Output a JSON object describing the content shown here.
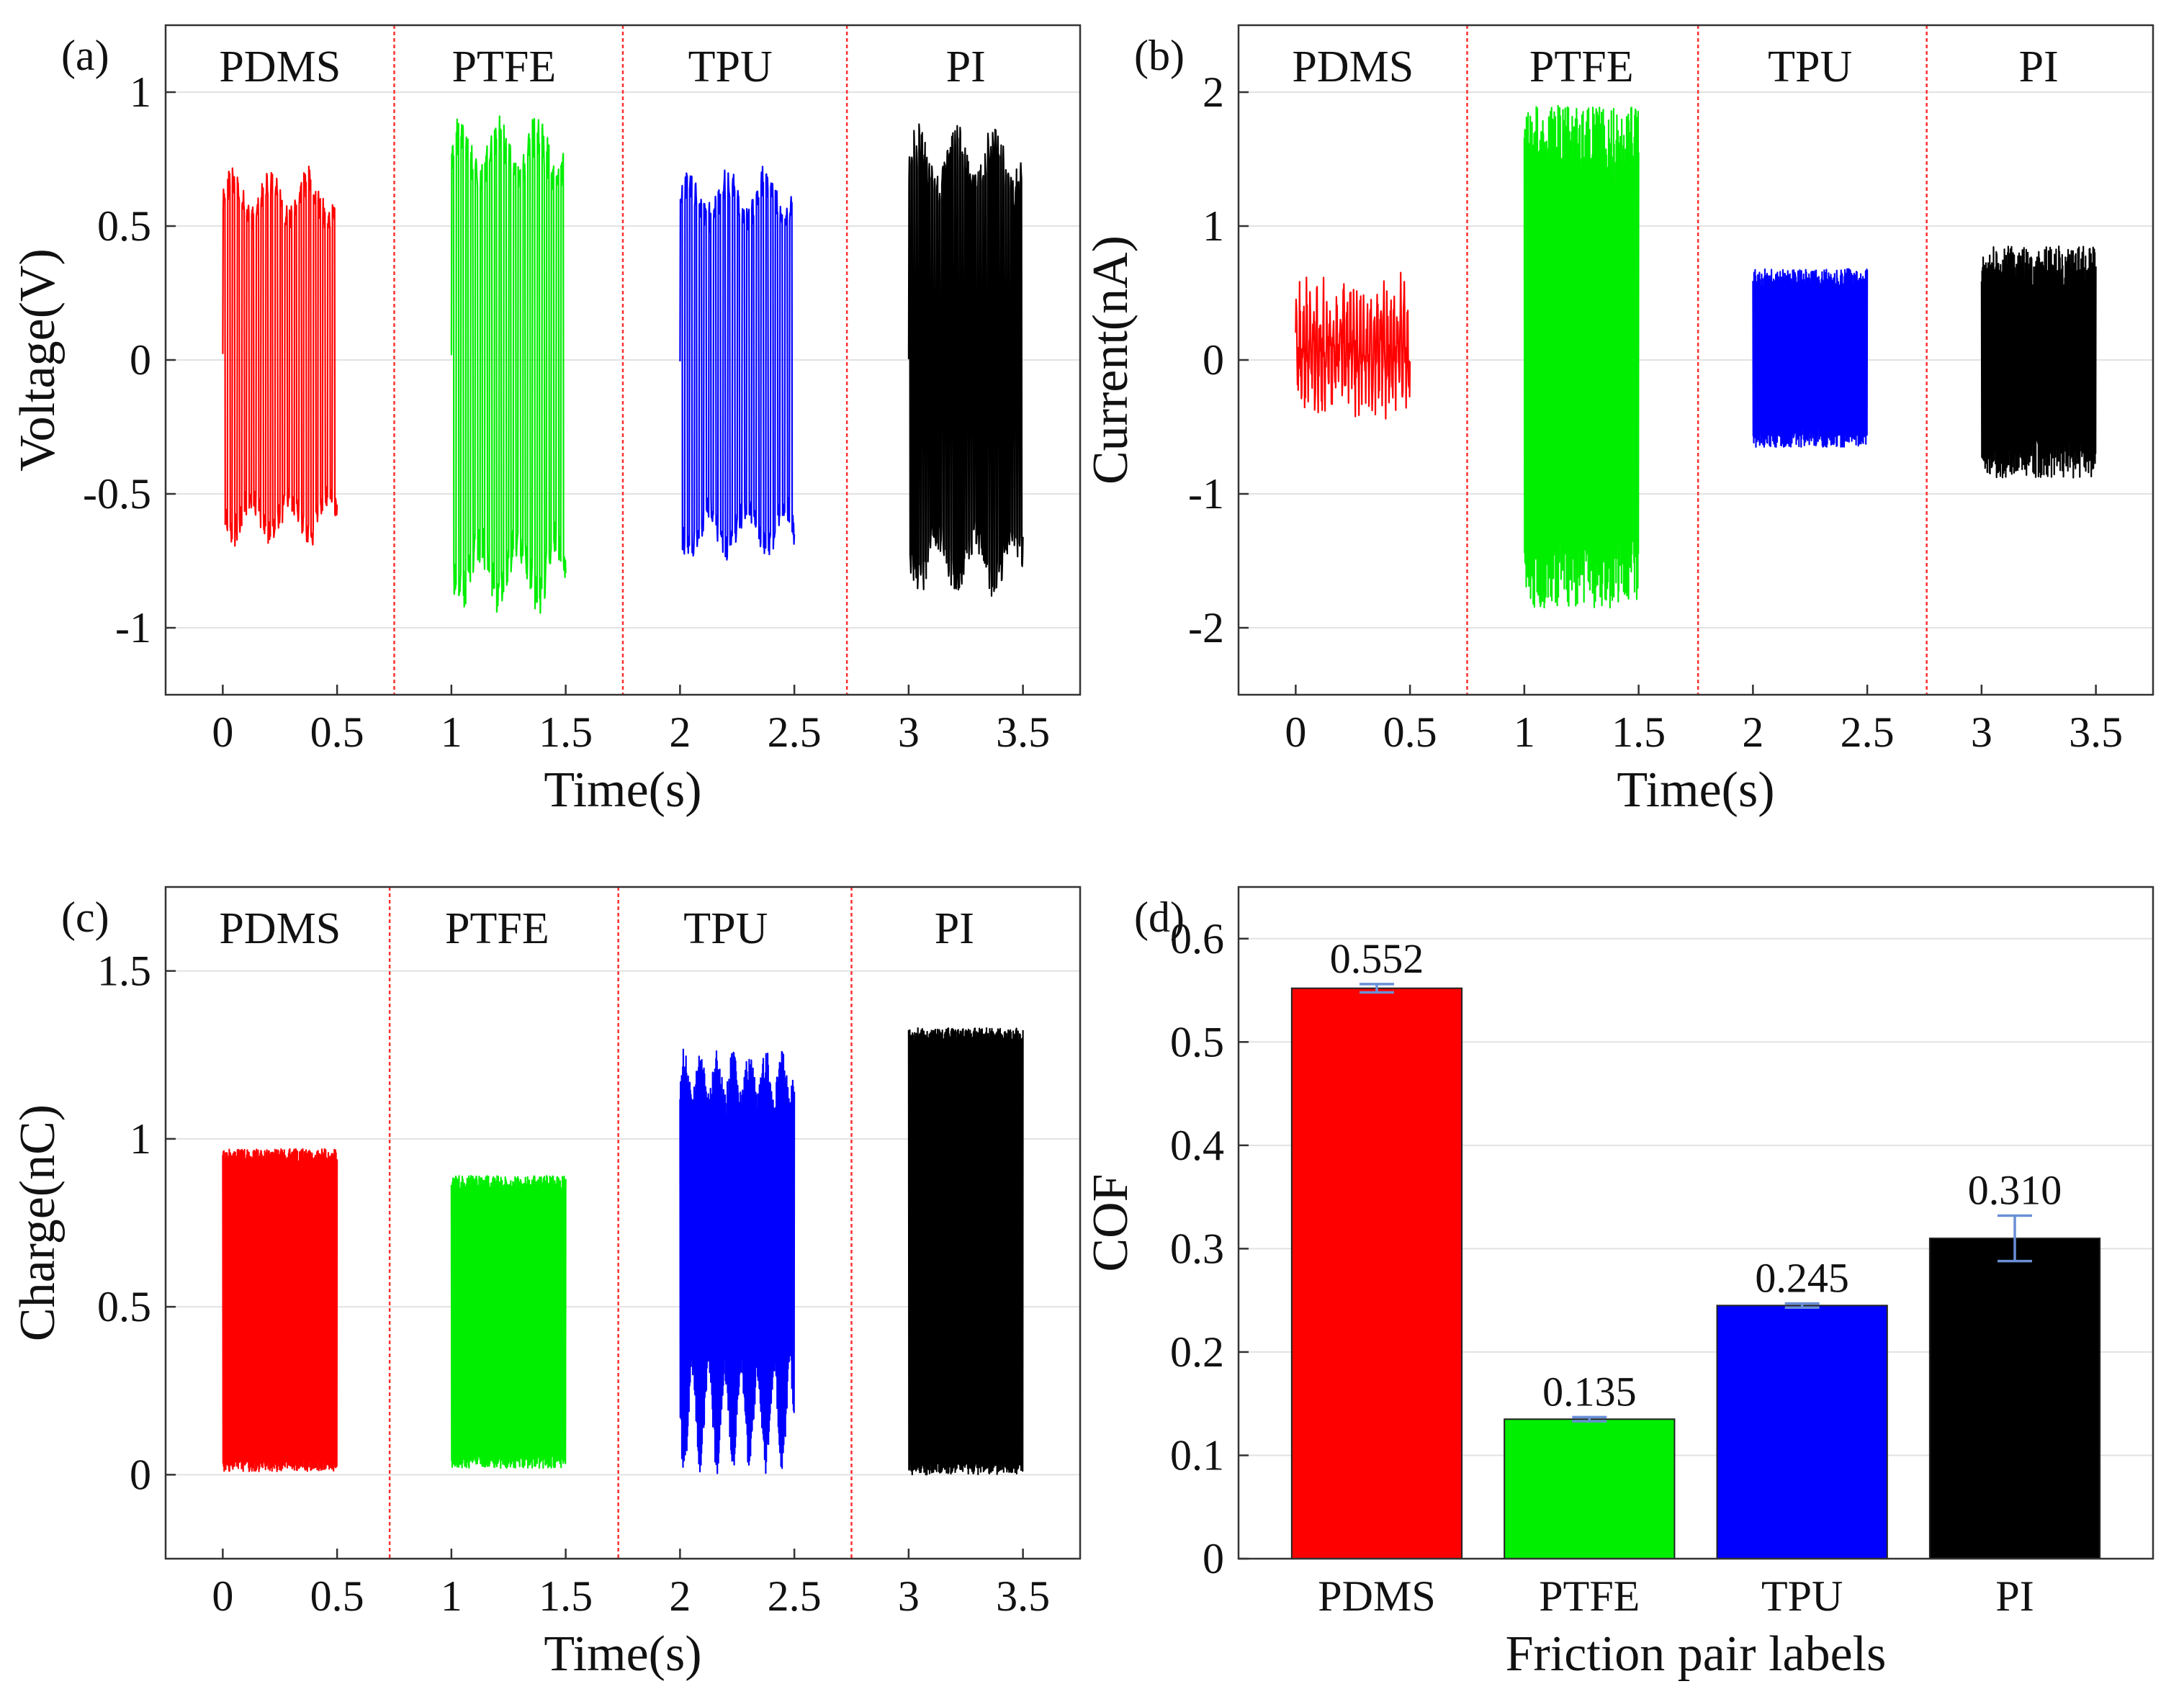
{
  "chart_data": [
    {
      "id": "a",
      "type": "line",
      "panel_label": "(a)",
      "xlabel": "Time(s)",
      "ylabel": "Voltage(V)",
      "xlim": [
        -0.25,
        3.75
      ],
      "ylim": [
        -1.25,
        1.25
      ],
      "xticks": [
        0,
        0.5,
        1,
        1.5,
        2,
        2.5,
        3,
        3.5
      ],
      "xtick_labels": [
        "0",
        "0.5",
        "1",
        "1.5",
        "2",
        "2.5",
        "3",
        "3.5"
      ],
      "yticks": [
        -1,
        -0.5,
        0,
        0.5,
        1
      ],
      "ytick_labels": [
        "-1",
        "-0.5",
        "0",
        "0.5",
        "1"
      ],
      "grid": true,
      "dividers": [
        0.75,
        1.75,
        2.73
      ],
      "groups": [
        {
          "label": "PDMS",
          "label_x": 0.25
        },
        {
          "label": "PTFE",
          "label_x": 1.23
        },
        {
          "label": "TPU",
          "label_x": 2.22
        },
        {
          "label": "PI",
          "label_x": 3.25
        }
      ],
      "series": [
        {
          "name": "PDMS",
          "color": "#ff0000",
          "t_start": 0,
          "t_end": 0.5,
          "cycles": 24,
          "min": -0.7,
          "max": 0.72,
          "base": 0,
          "jitter": 0.03,
          "style": "bipolar"
        },
        {
          "name": "PTFE",
          "color": "#00ee00",
          "t_start": 1.0,
          "t_end": 1.5,
          "cycles": 24,
          "min": -0.93,
          "max": 0.92,
          "base": 0,
          "jitter": 0.07,
          "style": "bipolar"
        },
        {
          "name": "TPU",
          "color": "#0000ff",
          "t_start": 2.0,
          "t_end": 2.5,
          "cycles": 24,
          "min": -0.75,
          "max": 0.72,
          "base": 0,
          "jitter": 0.04,
          "style": "bipolar"
        },
        {
          "name": "PI",
          "color": "#000000",
          "t_start": 3.0,
          "t_end": 3.5,
          "cycles": 45,
          "min": -0.88,
          "max": 0.87,
          "base": 0,
          "jitter": 0.05,
          "style": "bipolar"
        }
      ]
    },
    {
      "id": "b",
      "type": "line",
      "panel_label": "(b)",
      "xlabel": "Time(s)",
      "ylabel": "Current(nA)",
      "xlim": [
        -0.25,
        3.75
      ],
      "ylim": [
        -2.5,
        2.5
      ],
      "xticks": [
        0,
        0.5,
        1,
        1.5,
        2,
        2.5,
        3,
        3.5
      ],
      "xtick_labels": [
        "0",
        "0.5",
        "1",
        "1.5",
        "2",
        "2.5",
        "3",
        "3.5"
      ],
      "yticks": [
        -2,
        -1,
        0,
        1,
        2
      ],
      "ytick_labels": [
        "-2",
        "-1",
        "0",
        "1",
        "2"
      ],
      "grid": true,
      "dividers": [
        0.75,
        1.76,
        2.76
      ],
      "groups": [
        {
          "label": "PDMS",
          "label_x": 0.25
        },
        {
          "label": "PTFE",
          "label_x": 1.25
        },
        {
          "label": "TPU",
          "label_x": 2.25
        },
        {
          "label": "PI",
          "label_x": 3.25
        }
      ],
      "series": [
        {
          "name": "PDMS",
          "color": "#ff0000",
          "t_start": 0,
          "t_end": 0.5,
          "cycles": 34,
          "min": -0.6,
          "max": 0.75,
          "base": 0,
          "jitter": 0.25,
          "style": "noisy"
        },
        {
          "name": "PTFE",
          "color": "#00ee00",
          "t_start": 1.0,
          "t_end": 1.5,
          "cycles": 60,
          "min": -1.85,
          "max": 1.9,
          "base": 0,
          "jitter": 0.3,
          "style": "dense"
        },
        {
          "name": "TPU",
          "color": "#0000ff",
          "t_start": 2.0,
          "t_end": 2.5,
          "cycles": 60,
          "min": -0.65,
          "max": 0.68,
          "base": 0,
          "jitter": 0.07,
          "style": "dense"
        },
        {
          "name": "PI",
          "color": "#000000",
          "t_start": 3.0,
          "t_end": 3.5,
          "cycles": 60,
          "min": -0.88,
          "max": 0.85,
          "base": 0,
          "jitter": 0.15,
          "style": "dense"
        }
      ]
    },
    {
      "id": "c",
      "type": "line",
      "panel_label": "(c)",
      "xlabel": "Time(s)",
      "ylabel": "Charge(nC)",
      "xlim": [
        -0.25,
        3.75
      ],
      "ylim": [
        -0.25,
        1.75
      ],
      "xticks": [
        0,
        0.5,
        1,
        1.5,
        2,
        2.5,
        3,
        3.5
      ],
      "xtick_labels": [
        "0",
        "0.5",
        "1",
        "1.5",
        "2",
        "2.5",
        "3",
        "3.5"
      ],
      "yticks": [
        0,
        0.5,
        1,
        1.5
      ],
      "ytick_labels": [
        "0",
        "0.5",
        "1",
        "1.5"
      ],
      "grid": true,
      "dividers": [
        0.73,
        1.73,
        2.75
      ],
      "groups": [
        {
          "label": "PDMS",
          "label_x": 0.25
        },
        {
          "label": "PTFE",
          "label_x": 1.2
        },
        {
          "label": "TPU",
          "label_x": 2.2
        },
        {
          "label": "PI",
          "label_x": 3.2
        }
      ],
      "series": [
        {
          "name": "PDMS",
          "color": "#ff0000",
          "t_start": 0,
          "t_end": 0.5,
          "cycles": 60,
          "min": 0.01,
          "max": 0.97,
          "base": 0.45,
          "jitter": 0.02,
          "style": "unipolar"
        },
        {
          "name": "PTFE",
          "color": "#00ee00",
          "t_start": 1.0,
          "t_end": 1.5,
          "cycles": 60,
          "min": 0.02,
          "max": 0.89,
          "base": 0.4,
          "jitter": 0.02,
          "style": "unipolar"
        },
        {
          "name": "TPU",
          "color": "#0000ff",
          "t_start": 2.0,
          "t_end": 2.5,
          "cycles": 60,
          "min": 0.0,
          "max": 1.27,
          "base": 0.65,
          "jitter": 0.1,
          "style": "wavy"
        },
        {
          "name": "PI",
          "color": "#000000",
          "t_start": 3.0,
          "t_end": 3.5,
          "cycles": 60,
          "min": 0.0,
          "max": 1.33,
          "base": 0.6,
          "jitter": 0.02,
          "style": "unipolar"
        }
      ]
    },
    {
      "id": "d",
      "type": "bar",
      "panel_label": "(d)",
      "xlabel": "Friction pair labels",
      "ylabel": "COF",
      "categories": [
        "PDMS",
        "PTFE",
        "TPU",
        "PI"
      ],
      "values": [
        0.552,
        0.135,
        0.245,
        0.31
      ],
      "value_labels": [
        "0.552",
        "0.135",
        "0.245",
        "0.310"
      ],
      "errors": [
        0.004,
        0.002,
        0.002,
        0.022
      ],
      "colors": [
        "#ff0000",
        "#00ee00",
        "#0000ff",
        "#000000"
      ],
      "error_color": "#6a8fd6",
      "ylim": [
        0,
        0.65
      ],
      "yticks": [
        0,
        0.1,
        0.2,
        0.3,
        0.4,
        0.5,
        0.6
      ],
      "ytick_labels": [
        "0",
        "0.1",
        "0.2",
        "0.3",
        "0.4",
        "0.5",
        "0.6"
      ],
      "grid": true
    }
  ]
}
